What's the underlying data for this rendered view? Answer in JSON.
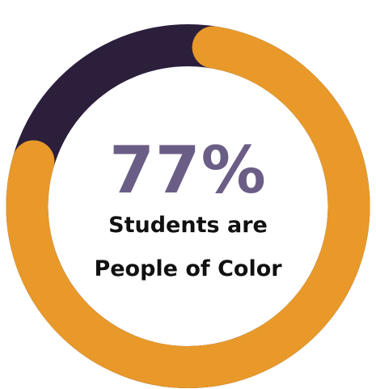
{
  "colors": {
    "track": "#2b1f3c",
    "value": "#e8992a",
    "percent_text": "#6b5e86",
    "label_text": "#111111",
    "background": "#ffffff"
  },
  "chart_data": {
    "type": "pie",
    "variant": "donut",
    "value_percent": 77,
    "remainder_percent": 23,
    "center_value_label": "77%",
    "center_label_lines": [
      "Students are",
      "People of Color"
    ]
  }
}
